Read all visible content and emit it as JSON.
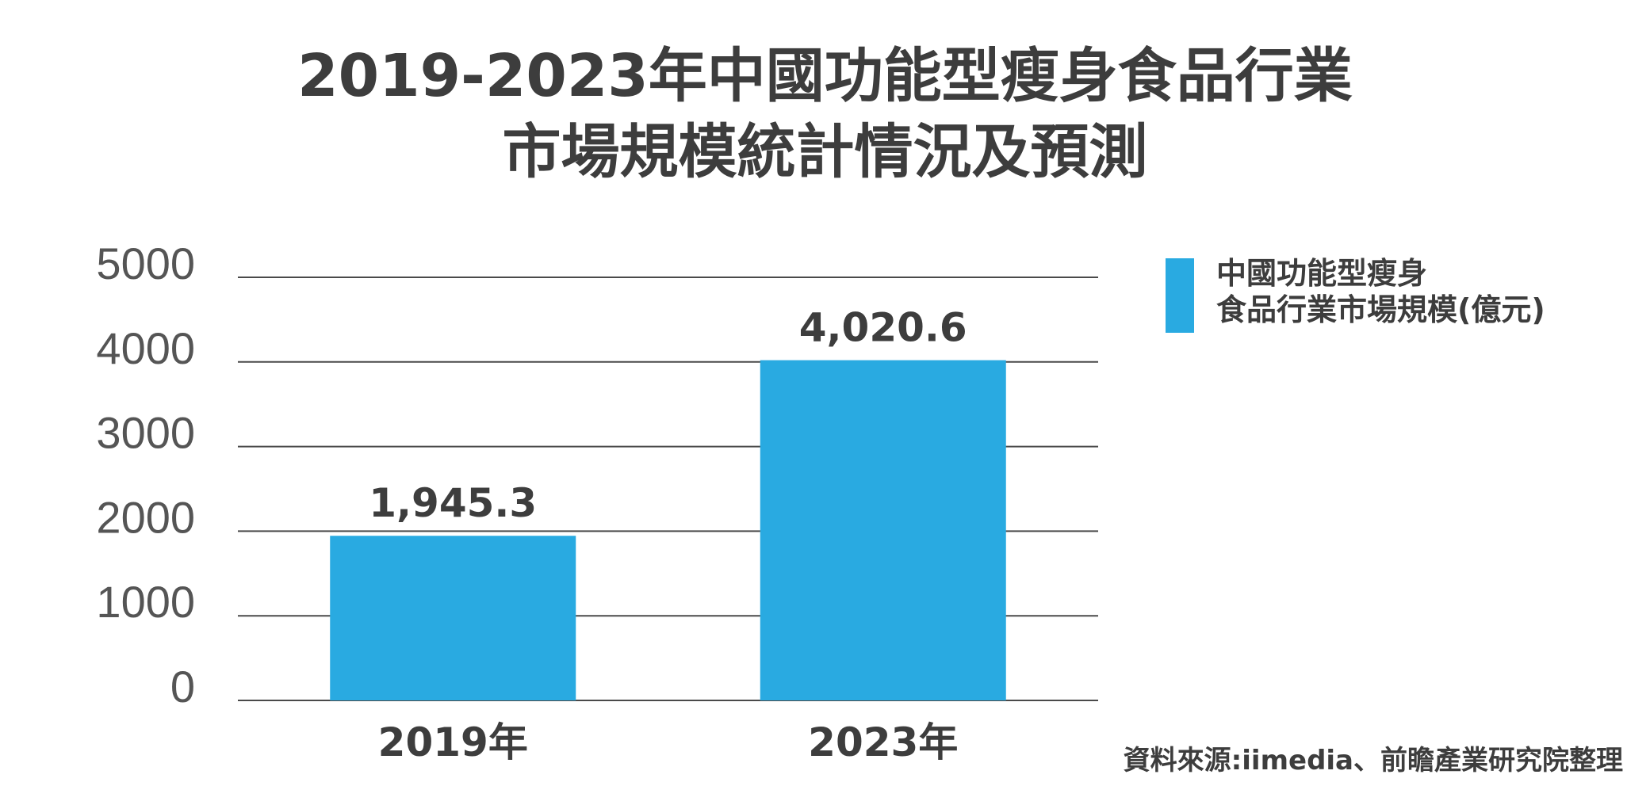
{
  "chart_data": {
    "type": "bar",
    "title_lines": [
      "2019-2023年中國功能型瘦身食品行業",
      "市場規模統計情況及預測"
    ],
    "categories": [
      "2019年",
      "2023年"
    ],
    "series": [
      {
        "name_lines": [
          "中國功能型瘦身",
          "食品行業市場規模(億元)"
        ],
        "values": [
          1945.3,
          4020.6
        ]
      }
    ],
    "data_labels": [
      "1,945.3",
      "4,020.6"
    ],
    "y_ticks": [
      0,
      1000,
      2000,
      3000,
      4000,
      5000
    ],
    "ylim": [
      0,
      5000
    ],
    "grid": true,
    "legend_position": "top-right",
    "bar_color": "#29aae1",
    "source": "資料來源:iimedia、前瞻產業研究院整理"
  }
}
